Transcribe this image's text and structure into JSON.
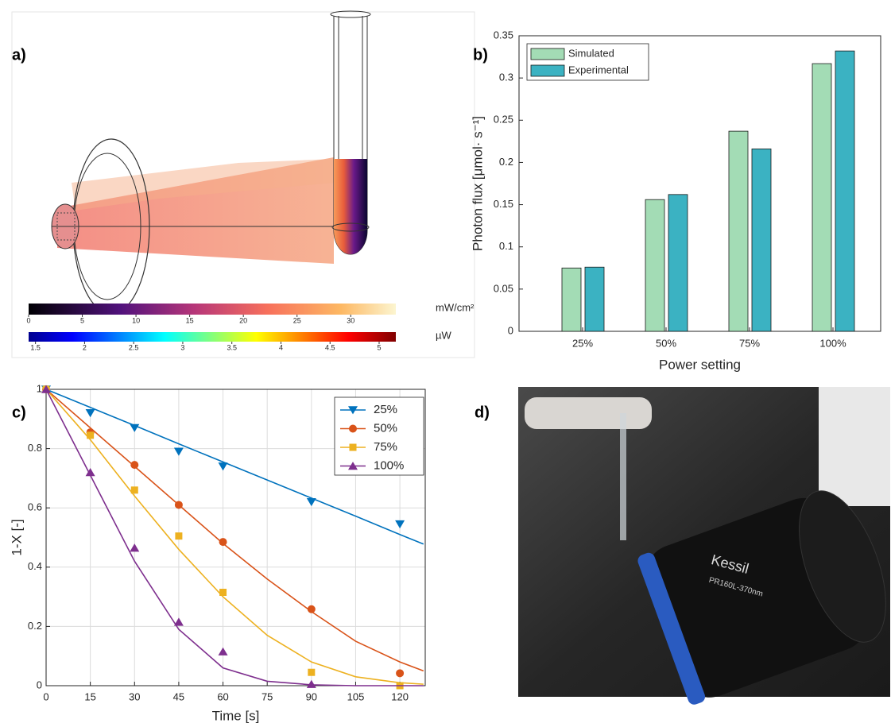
{
  "panel_labels": [
    "a)",
    "b)",
    "c)",
    "d)"
  ],
  "colorbars": [
    {
      "unit": "mW/cm²",
      "lim": [
        0,
        34.2
      ],
      "ticks": [
        0,
        5,
        10,
        15,
        20,
        25,
        30
      ]
    },
    {
      "unit": "µW",
      "lim": [
        1.43,
        5.17
      ],
      "ticks": [
        1.5,
        2,
        2.5,
        3,
        3.5,
        4,
        4.5,
        5
      ]
    }
  ],
  "photo": {
    "texts": [
      "Kessil",
      "PR160L-370nm"
    ]
  },
  "chart_data": [
    {
      "type": "bar",
      "xlabel": "Power setting",
      "ylabel": "Photon flux [μmol· s⁻¹]",
      "categories": [
        "25%",
        "50%",
        "75%",
        "100%"
      ],
      "series": [
        {
          "name": "Simulated",
          "color": "#a3dcb5",
          "values": [
            0.075,
            0.156,
            0.237,
            0.317
          ]
        },
        {
          "name": "Experimental",
          "color": "#3bb2c2",
          "values": [
            0.076,
            0.162,
            0.216,
            0.332
          ]
        }
      ],
      "ylim": [
        0,
        0.35
      ],
      "yticks": [
        0,
        0.05,
        0.1,
        0.15,
        0.2,
        0.25,
        0.3,
        0.35
      ],
      "grid": false,
      "legend": "top-left"
    },
    {
      "type": "line",
      "xlabel": "Time [s]",
      "ylabel": "1-X [-]",
      "x": [
        0,
        15,
        30,
        45,
        60,
        90,
        120
      ],
      "fit_x": [
        0,
        15,
        30,
        45,
        60,
        75,
        90,
        105,
        120,
        128
      ],
      "series": [
        {
          "name": "25%",
          "color": "#0072bd",
          "marker": "triangle-down",
          "values": [
            1,
            0.92,
            0.87,
            0.79,
            0.74,
            0.62,
            0.545
          ],
          "fit": [
            1,
            0.939,
            0.878,
            0.816,
            0.755,
            0.694,
            0.633,
            0.572,
            0.51,
            0.478
          ]
        },
        {
          "name": "50%",
          "color": "#d95319",
          "marker": "circle",
          "values": [
            1,
            0.855,
            0.745,
            0.61,
            0.485,
            0.258,
            0.042
          ],
          "fit": [
            1,
            0.87,
            0.74,
            0.61,
            0.48,
            0.36,
            0.25,
            0.15,
            0.08,
            0.05
          ]
        },
        {
          "name": "75%",
          "color": "#edb120",
          "marker": "square",
          "values": [
            1,
            0.845,
            0.66,
            0.505,
            0.315,
            0.045,
            0
          ],
          "fit": [
            1,
            0.83,
            0.64,
            0.46,
            0.3,
            0.17,
            0.08,
            0.03,
            0.01,
            0.005
          ]
        },
        {
          "name": "100%",
          "color": "#7e2f8e",
          "marker": "triangle-up",
          "values": [
            1,
            0.72,
            0.465,
            0.215,
            0.115,
            0.005,
            null
          ],
          "fit": [
            1,
            0.71,
            0.42,
            0.19,
            0.06,
            0.015,
            0.003,
            0,
            0,
            0
          ]
        }
      ],
      "xlim": [
        0,
        128.6
      ],
      "xticks": [
        0,
        15,
        30,
        45,
        60,
        75,
        90,
        105,
        120
      ],
      "ylim": [
        0,
        1
      ],
      "yticks": [
        0,
        0.2,
        0.4,
        0.6,
        0.8,
        1
      ],
      "grid": true,
      "legend": "top-right"
    }
  ]
}
